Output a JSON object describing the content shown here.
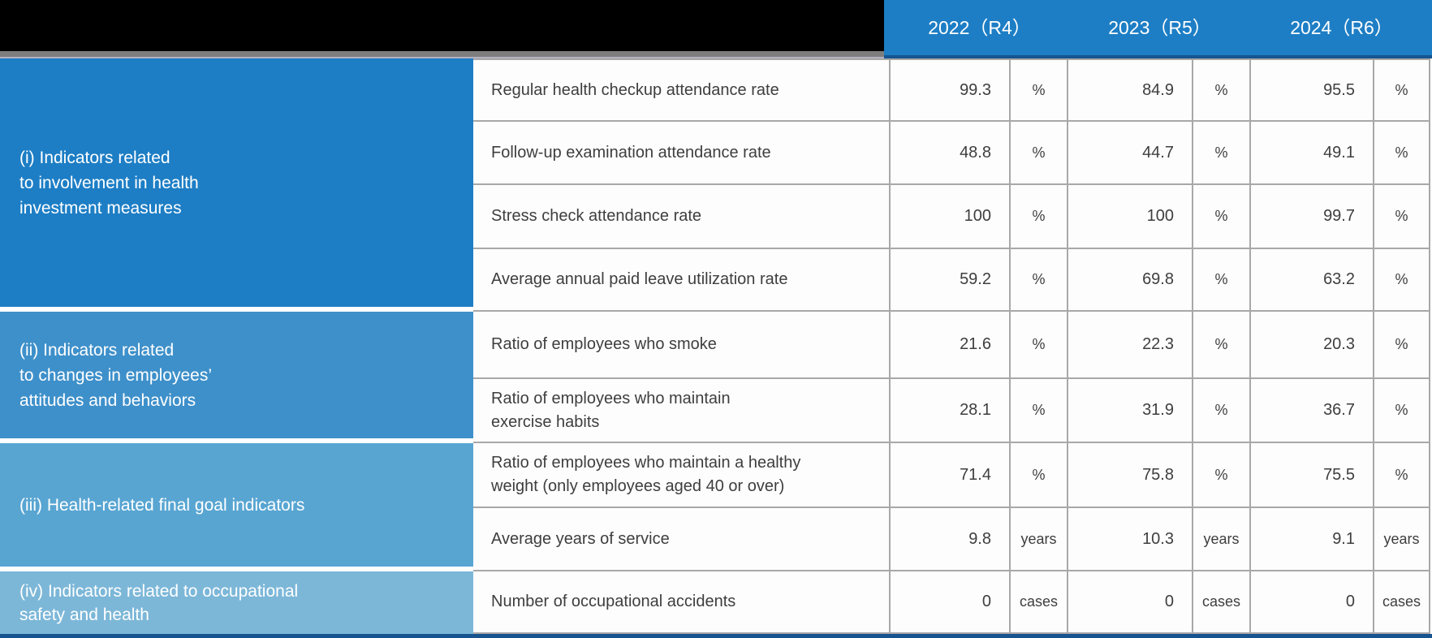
{
  "colors": {
    "primary_blue": "#1d7ec5",
    "section_ii_blue": "#3e90ca",
    "section_iii_blue": "#58a5d2",
    "section_iv_blue": "#7cb7d8",
    "navy_accent": "#17548f",
    "shadow_gray": "#7e7e7e",
    "grid_border": "#a8a8a8",
    "text_dark": "#3e3e3e"
  },
  "header": {
    "years": [
      "2022（R4）",
      "2023（R5）",
      "2024（R6）"
    ]
  },
  "categories": [
    {
      "label": "(i) Indicators related\n to involvement in health\n investment measures"
    },
    {
      "label": "(ii) Indicators related\nto changes in employees’\nattitudes and behaviors"
    },
    {
      "label": "(iii) Health-related final goal indicators"
    },
    {
      "label": "(iv) Indicators related to occupational\nsafety and health"
    }
  ],
  "table": {
    "rows": [
      {
        "indicator": "Regular health checkup attendance rate",
        "values": [
          "99.3",
          "84.9",
          "95.5"
        ],
        "unit": "%"
      },
      {
        "indicator": "Follow-up examination attendance rate",
        "values": [
          "48.8",
          "44.7",
          "49.1"
        ],
        "unit": "%"
      },
      {
        "indicator": "Stress check attendance rate",
        "values": [
          "100",
          "100",
          "99.7"
        ],
        "unit": "%"
      },
      {
        "indicator": "Average annual paid leave utilization rate",
        "values": [
          "59.2",
          "69.8",
          "63.2"
        ],
        "unit": "%"
      },
      {
        "indicator": "Ratio of employees who smoke",
        "values": [
          "21.6",
          "22.3",
          "20.3"
        ],
        "unit": "%"
      },
      {
        "indicator": "Ratio of employees who maintain\nexercise habits",
        "values": [
          "28.1",
          "31.9",
          "36.7"
        ],
        "unit": "%"
      },
      {
        "indicator": "Ratio of employees who maintain a healthy\nweight (only employees aged 40 or over)",
        "values": [
          "71.4",
          "75.8",
          "75.5"
        ],
        "unit": "%"
      },
      {
        "indicator": "Average years of service",
        "values": [
          "9.8",
          "10.3",
          "9.1"
        ],
        "unit": "years"
      },
      {
        "indicator": "Number of occupational accidents",
        "values": [
          "0",
          "0",
          "0"
        ],
        "unit": "cases"
      }
    ]
  }
}
